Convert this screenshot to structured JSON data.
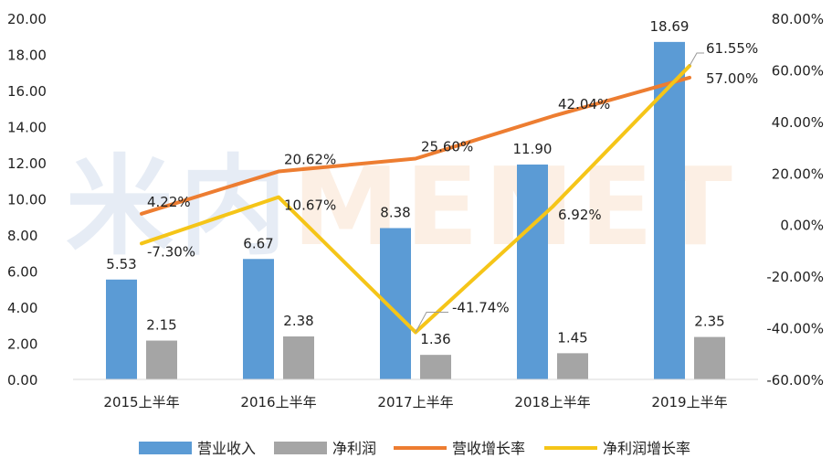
{
  "watermark": {
    "cn": "米内",
    "en": "MENET"
  },
  "chart_data": {
    "type": "bar",
    "categories": [
      "2015上半年",
      "2016上半年",
      "2017上半年",
      "2018上半年",
      "2019上半年"
    ],
    "series": [
      {
        "name": "营业收入",
        "type": "bar",
        "axis": "left",
        "color": "#5b9bd5",
        "values": [
          5.53,
          6.67,
          8.38,
          11.9,
          18.69
        ],
        "labels": [
          "5.53",
          "6.67",
          "8.38",
          "11.90",
          "18.69"
        ]
      },
      {
        "name": "净利润",
        "type": "bar",
        "axis": "left",
        "color": "#a5a5a5",
        "values": [
          2.15,
          2.38,
          1.36,
          1.45,
          2.35
        ],
        "labels": [
          "2.15",
          "2.38",
          "1.36",
          "1.45",
          "2.35"
        ]
      },
      {
        "name": "营收增长率",
        "type": "line",
        "axis": "right",
        "color": "#ed7d31",
        "values": [
          4.22,
          20.62,
          25.6,
          42.04,
          57.0
        ],
        "labels": [
          "4.22%",
          "20.62%",
          "25.60%",
          "42.04%",
          "57.00%"
        ]
      },
      {
        "name": "净利润增长率",
        "type": "line",
        "axis": "right",
        "color": "#f5c518",
        "values": [
          -7.3,
          10.67,
          -41.74,
          6.92,
          61.55
        ],
        "labels": [
          "-7.30%",
          "10.67%",
          "-41.74%",
          "6.92%",
          "61.55%"
        ]
      }
    ],
    "y_left": {
      "range": [
        0,
        20
      ],
      "ticks": [
        "0.00",
        "2.00",
        "4.00",
        "6.00",
        "8.00",
        "10.00",
        "12.00",
        "14.00",
        "16.00",
        "18.00",
        "20.00"
      ]
    },
    "y_right": {
      "range": [
        -60,
        80
      ],
      "ticks": [
        "-60.00%",
        "-40.00%",
        "-20.00%",
        "0.00%",
        "20.00%",
        "40.00%",
        "60.00%",
        "80.00%"
      ]
    },
    "grid": false,
    "legend": "bottom"
  }
}
